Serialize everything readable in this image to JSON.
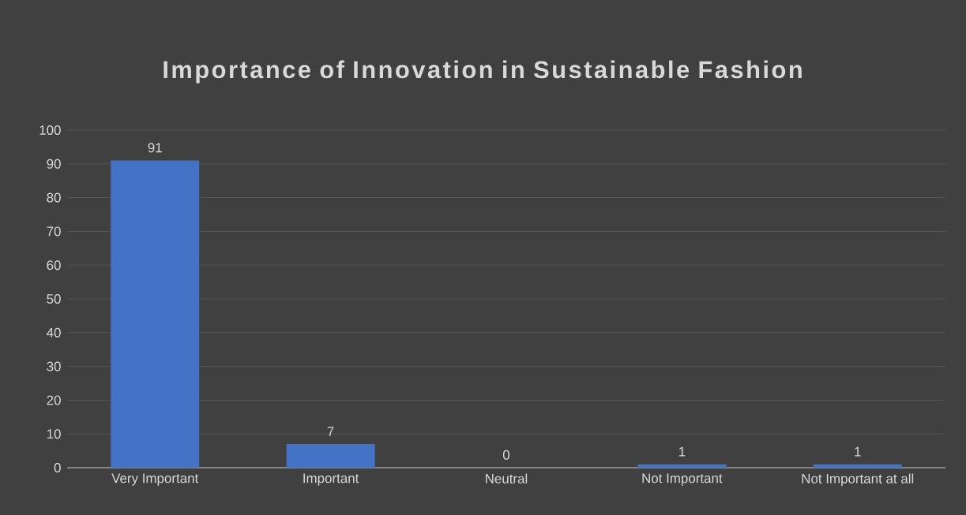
{
  "chart_data": {
    "type": "bar",
    "title": "Importance of Innovation in Sustainable Fashion",
    "categories": [
      "Very Important",
      "Important",
      "Neutral",
      "Not Important",
      "Not Important at all"
    ],
    "values": [
      91,
      7,
      0,
      1,
      1
    ],
    "color": "#4472c4",
    "ylim": [
      0,
      100
    ],
    "yticks": [
      0,
      10,
      20,
      30,
      40,
      50,
      60,
      70,
      80,
      90,
      100
    ],
    "grid": "y",
    "data_labels": true
  }
}
